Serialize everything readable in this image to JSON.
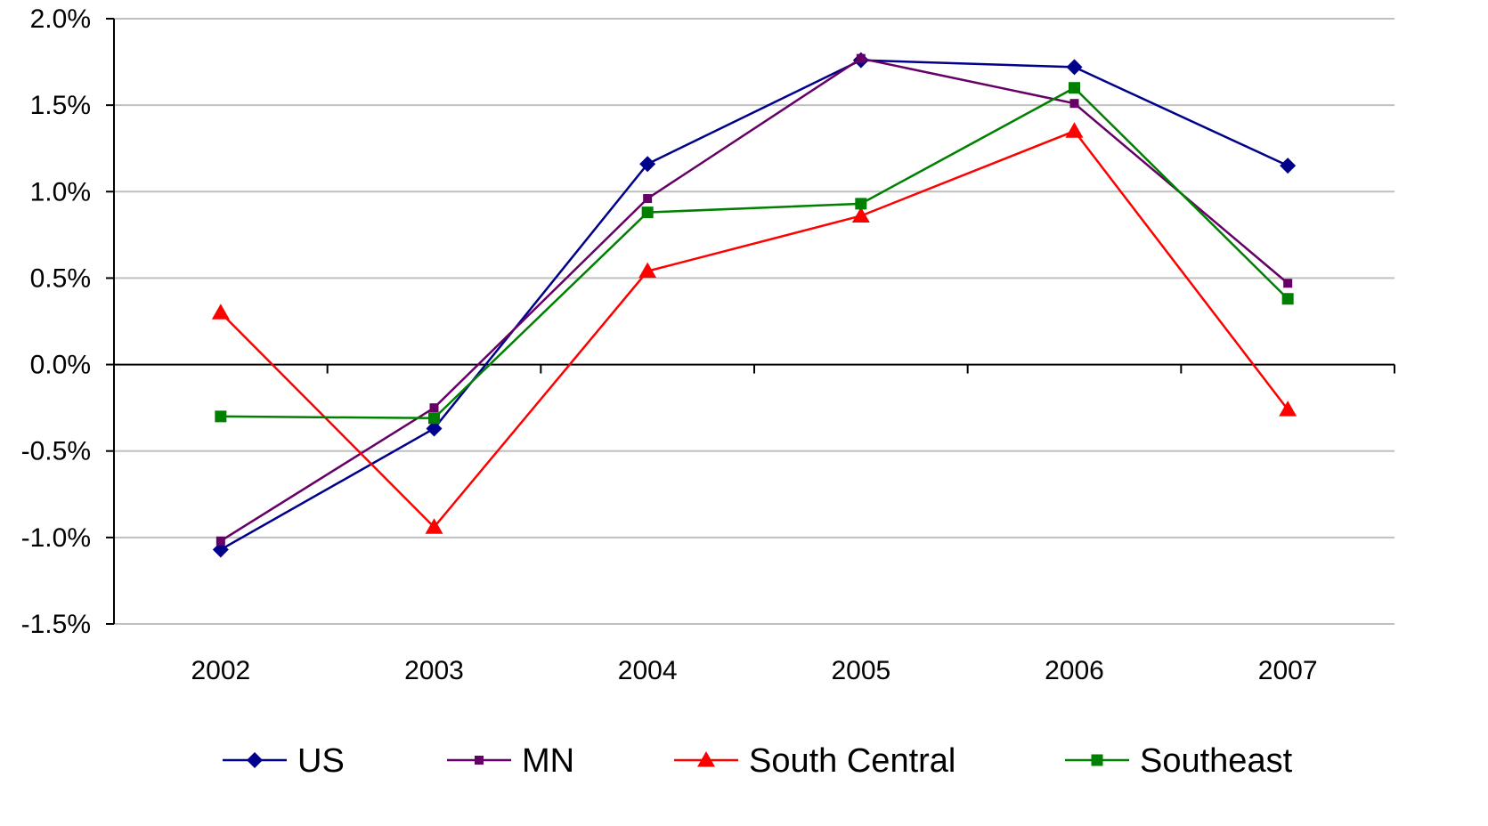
{
  "chart_data": {
    "type": "line",
    "title": "",
    "xlabel": "",
    "ylabel": "",
    "categories": [
      "2002",
      "2003",
      "2004",
      "2005",
      "2006",
      "2007"
    ],
    "ylim": [
      -1.5,
      2.0
    ],
    "yticks": [
      2.0,
      1.5,
      1.0,
      0.5,
      0.0,
      -0.5,
      -1.0,
      -1.5
    ],
    "ytick_labels": [
      "2.0%",
      "1.5%",
      "1.0%",
      "0.5%",
      "0.0%",
      "-0.5%",
      "-1.0%",
      "-1.5%"
    ],
    "grid": true,
    "legend_position": "bottom",
    "series": [
      {
        "name": "US",
        "color": "#00008B",
        "marker": "diamond",
        "values": [
          -1.07,
          -0.37,
          1.16,
          1.76,
          1.72,
          1.15
        ]
      },
      {
        "name": "MN",
        "color": "#660066",
        "marker": "small-square",
        "values": [
          -1.02,
          -0.25,
          0.96,
          1.77,
          1.51,
          0.47
        ]
      },
      {
        "name": "South Central",
        "color": "#FF0000",
        "marker": "triangle",
        "values": [
          0.3,
          -0.94,
          0.54,
          0.86,
          1.35,
          -0.26
        ]
      },
      {
        "name": "Southeast",
        "color": "#008000",
        "marker": "square",
        "values": [
          -0.3,
          -0.31,
          0.88,
          0.93,
          1.6,
          0.38
        ]
      }
    ]
  }
}
